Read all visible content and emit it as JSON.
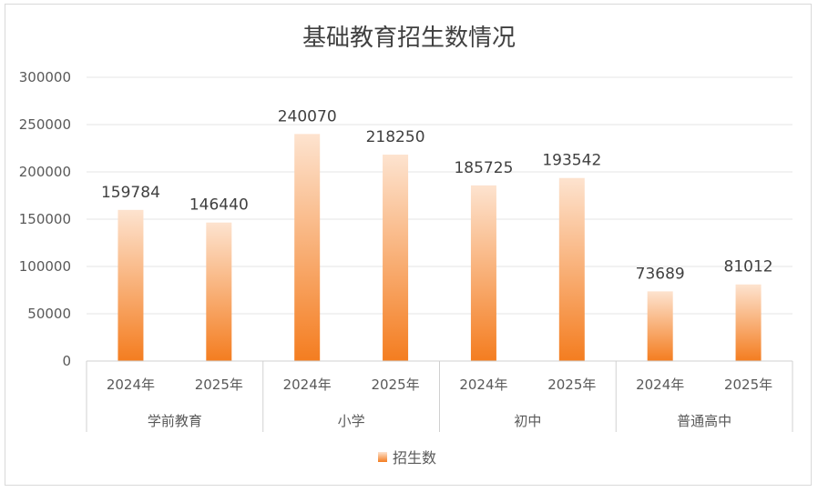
{
  "chart_data": {
    "type": "bar",
    "title": "基础教育招生数情况",
    "xlabel": "",
    "ylabel": "",
    "ylim": [
      0,
      300000
    ],
    "yticks": [
      "0",
      "50000",
      "100000",
      "150000",
      "200000",
      "250000",
      "300000"
    ],
    "grid": true,
    "legend_position": "bottom",
    "groups": [
      {
        "label": "学前教育",
        "categories": [
          "2024年",
          "2025年"
        ],
        "values": [
          159784,
          146440
        ]
      },
      {
        "label": "小学",
        "categories": [
          "2024年",
          "2025年"
        ],
        "values": [
          240070,
          218250
        ]
      },
      {
        "label": "初中",
        "categories": [
          "2024年",
          "2025年"
        ],
        "values": [
          185725,
          193542
        ]
      },
      {
        "label": "普通高中",
        "categories": [
          "2024年",
          "2025年"
        ],
        "values": [
          73689,
          81012
        ]
      }
    ],
    "series": [
      {
        "name": "招生数",
        "values": [
          159784,
          146440,
          240070,
          218250,
          185725,
          193542,
          73689,
          81012
        ],
        "color_top": "#fde3cf",
        "color_bottom": "#f47d20"
      }
    ]
  }
}
